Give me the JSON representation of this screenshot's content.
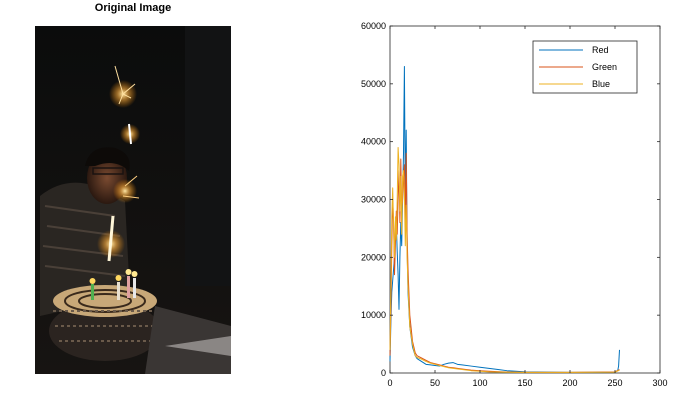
{
  "left_panel": {
    "title": "Original Image"
  },
  "chart_data": {
    "type": "line",
    "title": "",
    "xlabel": "",
    "ylabel": "",
    "xlim": [
      0,
      300
    ],
    "ylim": [
      0,
      60000
    ],
    "xticks": [
      0,
      50,
      100,
      150,
      200,
      250,
      300
    ],
    "yticks": [
      0,
      10000,
      20000,
      30000,
      40000,
      50000,
      60000
    ],
    "grid": false,
    "legend_position": "top-right",
    "series": [
      {
        "name": "Red",
        "color": "#0072BD",
        "x": [
          0,
          1,
          2,
          3,
          4,
          5,
          6,
          7,
          8,
          9,
          10,
          11,
          12,
          13,
          14,
          15,
          16,
          17,
          18,
          19,
          20,
          22,
          25,
          28,
          30,
          35,
          40,
          45,
          50,
          55,
          60,
          65,
          70,
          75,
          80,
          90,
          100,
          110,
          120,
          130,
          140,
          150,
          175,
          200,
          225,
          250,
          253,
          254,
          255
        ],
        "y": [
          2000,
          9000,
          14000,
          16000,
          18000,
          20000,
          24000,
          26000,
          21000,
          17000,
          11000,
          20000,
          26000,
          22000,
          30000,
          38000,
          53000,
          30000,
          42000,
          22000,
          14000,
          8000,
          4500,
          3000,
          2500,
          2000,
          1500,
          1400,
          1300,
          1200,
          1500,
          1700,
          1800,
          1500,
          1400,
          1200,
          1000,
          800,
          600,
          400,
          300,
          200,
          150,
          100,
          100,
          200,
          400,
          1200,
          4000
        ]
      },
      {
        "name": "Green",
        "color": "#D95319",
        "x": [
          0,
          1,
          2,
          3,
          4,
          5,
          6,
          7,
          8,
          9,
          10,
          11,
          12,
          13,
          14,
          15,
          16,
          17,
          18,
          19,
          20,
          22,
          25,
          28,
          30,
          35,
          40,
          45,
          50,
          55,
          60,
          65,
          70,
          80,
          90,
          100,
          110,
          125,
          150,
          200,
          250,
          255
        ],
        "y": [
          3000,
          11000,
          22000,
          30000,
          26000,
          17000,
          22000,
          28000,
          24000,
          30000,
          35000,
          26000,
          37000,
          28000,
          30000,
          34000,
          36000,
          26000,
          38000,
          24000,
          18000,
          10000,
          5500,
          3500,
          3000,
          2600,
          2200,
          1800,
          1600,
          1400,
          1200,
          1000,
          900,
          700,
          500,
          400,
          300,
          200,
          100,
          100,
          200,
          600
        ]
      },
      {
        "name": "Blue",
        "color": "#EDB120",
        "x": [
          0,
          1,
          2,
          3,
          4,
          5,
          6,
          7,
          8,
          9,
          10,
          11,
          12,
          13,
          14,
          15,
          16,
          17,
          18,
          19,
          20,
          22,
          25,
          28,
          30,
          35,
          40,
          45,
          50,
          55,
          60,
          65,
          70,
          80,
          90,
          100,
          110,
          125,
          150,
          200,
          250,
          255
        ],
        "y": [
          4000,
          15000,
          27000,
          32000,
          25000,
          20000,
          27000,
          23000,
          30000,
          39000,
          36000,
          28000,
          34000,
          24000,
          34000,
          35000,
          31000,
          22000,
          29000,
          20000,
          15000,
          8000,
          5000,
          3000,
          2700,
          2400,
          2000,
          1700,
          1500,
          1300,
          1100,
          900,
          800,
          600,
          400,
          300,
          200,
          150,
          100,
          100,
          150,
          500
        ]
      }
    ]
  },
  "colors": {
    "axis": "#262626",
    "legend_border": "#262626"
  }
}
